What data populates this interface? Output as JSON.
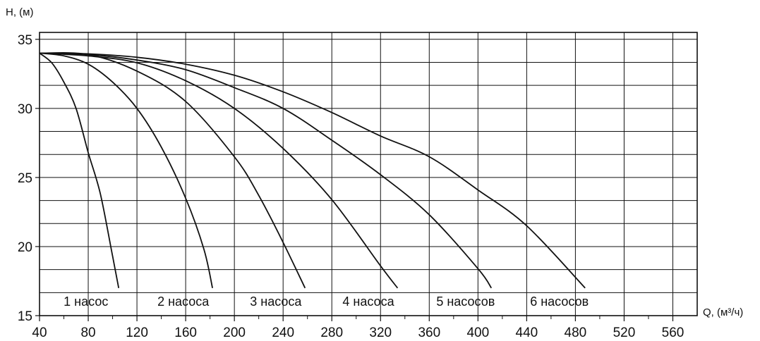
{
  "chart_data": {
    "type": "line",
    "title": "",
    "xlabel": "Q, (м³/ч)",
    "ylabel": "H, (м)",
    "xlim": [
      40,
      580
    ],
    "ylim": [
      15,
      35.5
    ],
    "x_ticks": [
      40,
      80,
      120,
      160,
      200,
      240,
      280,
      320,
      360,
      400,
      440,
      480,
      520,
      560
    ],
    "y_ticks": [
      15,
      20,
      25,
      30,
      35
    ],
    "grid": true,
    "colors": {
      "line": "#111111",
      "grid": "#111111",
      "background": "#ffffff"
    },
    "series": [
      {
        "name": "1 насос",
        "x": [
          40,
          50,
          60,
          70,
          80,
          90,
          100,
          105
        ],
        "y": [
          34,
          33.3,
          31.9,
          30.0,
          26.8,
          23.8,
          19.3,
          17
        ]
      },
      {
        "name": "2 насоса",
        "x": [
          40,
          60,
          80,
          100,
          120,
          140,
          160,
          175,
          182
        ],
        "y": [
          34,
          33.8,
          33.2,
          31.9,
          30.0,
          27.2,
          23.5,
          19.8,
          17
        ]
      },
      {
        "name": "3 насоса",
        "x": [
          40,
          80,
          120,
          160,
          200,
          220,
          240,
          258
        ],
        "y": [
          34,
          33.9,
          32.7,
          30.5,
          26.5,
          23.7,
          20.3,
          17
        ]
      },
      {
        "name": "4 насоса",
        "x": [
          40,
          80,
          120,
          160,
          200,
          240,
          280,
          320,
          334
        ],
        "y": [
          34,
          33.8,
          33.3,
          32.0,
          30.0,
          27.1,
          23.4,
          18.6,
          17
        ]
      },
      {
        "name": "5 насосов",
        "x": [
          40,
          80,
          120,
          160,
          200,
          240,
          280,
          320,
          360,
          400,
          411
        ],
        "y": [
          34,
          33.9,
          33.5,
          32.8,
          31.5,
          30.0,
          27.7,
          25.2,
          22.3,
          18.4,
          17
        ]
      },
      {
        "name": "6 насосов",
        "x": [
          40,
          80,
          120,
          160,
          200,
          240,
          280,
          320,
          360,
          400,
          440,
          488
        ],
        "y": [
          34,
          33.95,
          33.7,
          33.2,
          32.4,
          31.2,
          29.7,
          28.0,
          26.5,
          24.1,
          21.5,
          17
        ]
      }
    ]
  }
}
